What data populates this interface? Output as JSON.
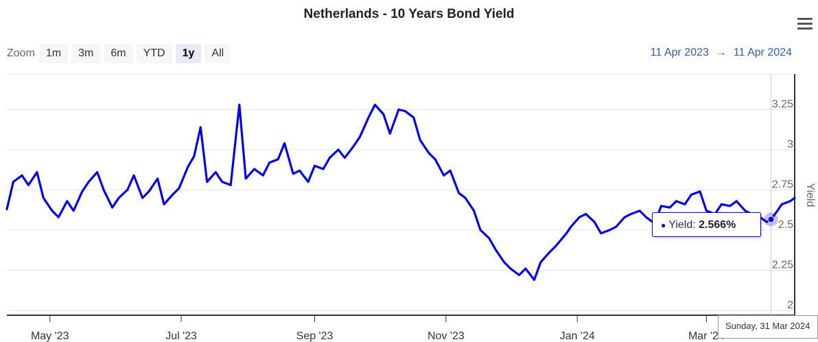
{
  "chart_data": {
    "type": "line",
    "title": "Netherlands - 10 Years Bond Yield",
    "ylabel": "Yield",
    "xlabel": "",
    "ylim": [
      1.97,
      3.47
    ],
    "xrange": [
      "2023-04-11",
      "2024-04-11"
    ],
    "y_ticks": [
      2,
      2.25,
      2.5,
      2.75,
      3,
      3.25
    ],
    "y_tick_labels": [
      "2",
      "2.25",
      "2.5",
      "2.75",
      "3",
      "3.25"
    ],
    "x_ticks": [
      "2023-05-01",
      "2023-07-01",
      "2023-09-01",
      "2023-11-01",
      "2024-01-01",
      "2024-03-01"
    ],
    "x_tick_labels": [
      "May '23",
      "Jul '23",
      "Sep '23",
      "Nov '23",
      "Jan '24",
      "Mar '24"
    ],
    "grid": true,
    "series": [
      {
        "name": "Yield",
        "color": "#0000ee",
        "x": [
          "2023-04-11",
          "2023-04-14",
          "2023-04-18",
          "2023-04-21",
          "2023-04-25",
          "2023-04-28",
          "2023-05-02",
          "2023-05-05",
          "2023-05-09",
          "2023-05-12",
          "2023-05-16",
          "2023-05-19",
          "2023-05-23",
          "2023-05-26",
          "2023-05-30",
          "2023-06-02",
          "2023-06-06",
          "2023-06-09",
          "2023-06-13",
          "2023-06-16",
          "2023-06-20",
          "2023-06-23",
          "2023-06-27",
          "2023-06-30",
          "2023-07-04",
          "2023-07-07",
          "2023-07-10",
          "2023-07-13",
          "2023-07-17",
          "2023-07-20",
          "2023-07-24",
          "2023-07-28",
          "2023-07-31",
          "2023-08-04",
          "2023-08-08",
          "2023-08-11",
          "2023-08-15",
          "2023-08-18",
          "2023-08-22",
          "2023-08-25",
          "2023-08-29",
          "2023-09-01",
          "2023-09-05",
          "2023-09-08",
          "2023-09-12",
          "2023-09-15",
          "2023-09-19",
          "2023-09-22",
          "2023-09-26",
          "2023-09-29",
          "2023-10-03",
          "2023-10-06",
          "2023-10-10",
          "2023-10-13",
          "2023-10-17",
          "2023-10-20",
          "2023-10-24",
          "2023-10-27",
          "2023-10-31",
          "2023-11-03",
          "2023-11-07",
          "2023-11-10",
          "2023-11-14",
          "2023-11-17",
          "2023-11-21",
          "2023-11-24",
          "2023-11-28",
          "2023-12-01",
          "2023-12-05",
          "2023-12-08",
          "2023-12-12",
          "2023-12-15",
          "2023-12-19",
          "2023-12-22",
          "2023-12-27",
          "2023-12-29",
          "2024-01-02",
          "2024-01-05",
          "2024-01-09",
          "2024-01-12",
          "2024-01-16",
          "2024-01-19",
          "2024-01-23",
          "2024-01-26",
          "2024-01-30",
          "2024-02-02",
          "2024-02-06",
          "2024-02-09",
          "2024-02-13",
          "2024-02-16",
          "2024-02-20",
          "2024-02-23",
          "2024-02-27",
          "2024-03-01",
          "2024-03-05",
          "2024-03-08",
          "2024-03-12",
          "2024-03-15",
          "2024-03-19",
          "2024-03-22",
          "2024-03-26",
          "2024-03-29",
          "2024-03-31",
          "2024-04-03",
          "2024-04-05",
          "2024-04-09",
          "2024-04-11"
        ],
        "values": [
          2.63,
          2.8,
          2.84,
          2.78,
          2.86,
          2.7,
          2.62,
          2.58,
          2.68,
          2.62,
          2.74,
          2.8,
          2.86,
          2.75,
          2.64,
          2.7,
          2.75,
          2.84,
          2.7,
          2.74,
          2.82,
          2.66,
          2.72,
          2.76,
          2.89,
          2.96,
          3.14,
          2.8,
          2.86,
          2.8,
          2.78,
          3.28,
          2.82,
          2.88,
          2.84,
          2.92,
          2.94,
          3.04,
          2.85,
          2.87,
          2.8,
          2.9,
          2.88,
          2.95,
          3.0,
          2.95,
          3.02,
          3.08,
          3.2,
          3.28,
          3.22,
          3.1,
          3.25,
          3.24,
          3.2,
          3.06,
          2.98,
          2.94,
          2.84,
          2.87,
          2.73,
          2.7,
          2.62,
          2.5,
          2.45,
          2.38,
          2.3,
          2.26,
          2.22,
          2.26,
          2.19,
          2.3,
          2.36,
          2.4,
          2.48,
          2.52,
          2.58,
          2.6,
          2.55,
          2.48,
          2.5,
          2.52,
          2.58,
          2.6,
          2.62,
          2.58,
          2.54,
          2.65,
          2.64,
          2.68,
          2.66,
          2.72,
          2.74,
          2.62,
          2.6,
          2.66,
          2.65,
          2.68,
          2.62,
          2.6,
          2.58,
          2.55,
          2.566,
          2.62,
          2.66,
          2.68,
          2.7
        ]
      }
    ],
    "highlight": {
      "date": "2024-03-31",
      "value": 2.566
    }
  },
  "ui": {
    "zoom_label": "Zoom",
    "zoom_buttons": [
      "1m",
      "3m",
      "6m",
      "YTD",
      "1y",
      "All"
    ],
    "zoom_active": "1y",
    "range_from": "11 Apr 2023",
    "range_arrow": "→",
    "range_to": "11 Apr 2024",
    "menu_icon": "hamburger-menu-icon",
    "tooltip_label": "Yield:",
    "tooltip_value": "2.566%",
    "date_tooltip": "Sunday, 31 Mar 2024"
  }
}
